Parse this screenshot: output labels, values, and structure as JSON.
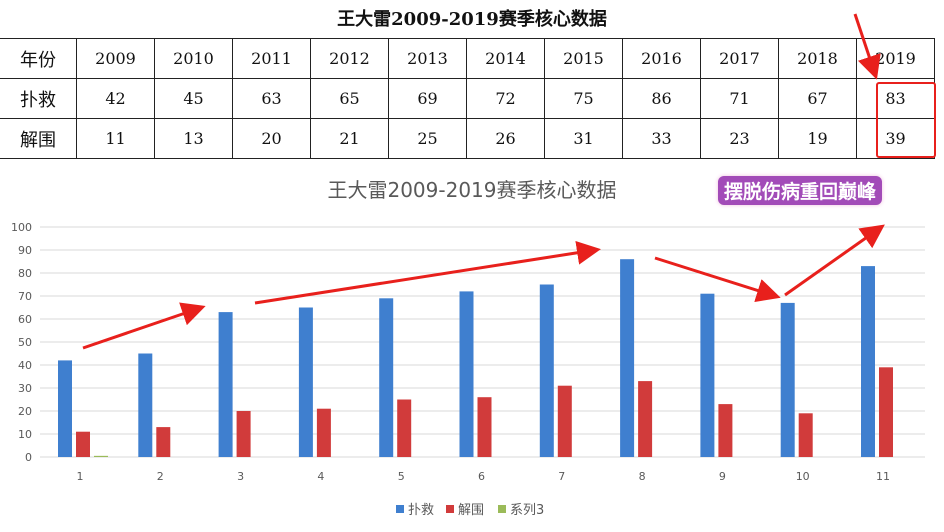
{
  "table": {
    "title": "王大雷2009-2019赛季核心数据",
    "rows": [
      {
        "label": "年份",
        "cells": [
          "2009",
          "2010",
          "2011",
          "2012",
          "2013",
          "2014",
          "2015",
          "2016",
          "2017",
          "2018",
          "2019"
        ]
      },
      {
        "label": "扑救",
        "cells": [
          "42",
          "45",
          "63",
          "65",
          "69",
          "72",
          "75",
          "86",
          "71",
          "67",
          "83"
        ]
      },
      {
        "label": "解围",
        "cells": [
          "11",
          "13",
          "20",
          "21",
          "25",
          "26",
          "31",
          "33",
          "23",
          "19",
          "39"
        ]
      }
    ]
  },
  "annotation": {
    "label": "摆脱伤病重回巅峰",
    "color": "#a24bb8",
    "arrow_color": "#e8201c"
  },
  "chart_data": {
    "type": "bar",
    "title": "王大雷2009-2019赛季核心数据",
    "categories": [
      "1",
      "2",
      "3",
      "4",
      "5",
      "6",
      "7",
      "8",
      "9",
      "10",
      "11"
    ],
    "series": [
      {
        "name": "扑救",
        "color": "#3f7fcf",
        "values": [
          42,
          45,
          63,
          65,
          69,
          72,
          75,
          86,
          71,
          67,
          83
        ]
      },
      {
        "name": "解围",
        "color": "#d13b3b",
        "values": [
          11,
          13,
          20,
          21,
          25,
          26,
          31,
          33,
          23,
          19,
          39
        ]
      },
      {
        "name": "系列3",
        "color": "#9bbb59",
        "values": [
          0.5,
          0,
          0,
          0,
          0,
          0,
          0,
          0,
          0,
          0,
          0
        ]
      }
    ],
    "ylim": [
      0,
      100
    ],
    "yticks": [
      0,
      10,
      20,
      30,
      40,
      50,
      60,
      70,
      80,
      90,
      100
    ],
    "grid": true,
    "legend": "bottom"
  }
}
